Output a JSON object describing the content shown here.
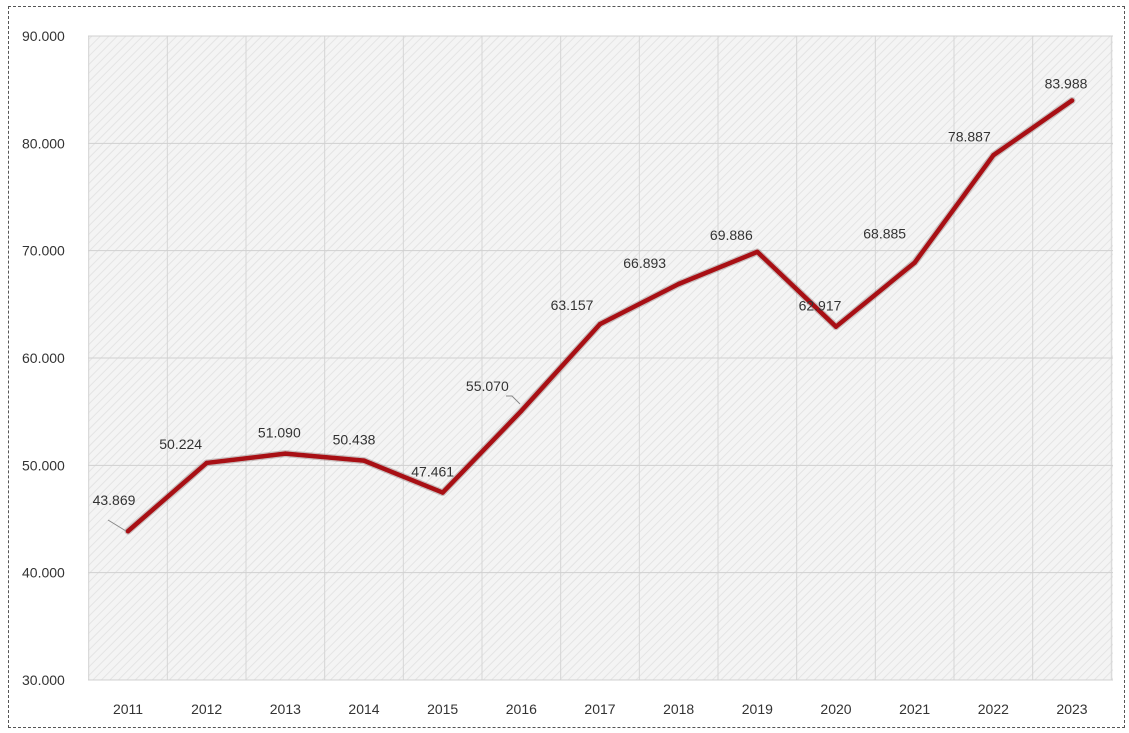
{
  "chart_data": {
    "type": "line",
    "title": "",
    "xlabel": "",
    "ylabel": "",
    "categories": [
      "2011",
      "2012",
      "2013",
      "2014",
      "2015",
      "2016",
      "2017",
      "2018",
      "2019",
      "2020",
      "2021",
      "2022",
      "2023"
    ],
    "series": [
      {
        "values": [
          43869,
          50224,
          51090,
          50438,
          47461,
          55070,
          63157,
          66893,
          69886,
          62917,
          68885,
          78887,
          83988
        ],
        "color": "#a80f14"
      }
    ],
    "data_labels": [
      "43.869",
      "50.224",
      "51.090",
      "50.438",
      "47.461",
      "55.070",
      "63.157",
      "66.893",
      "69.886",
      "62.917",
      "68.885",
      "78.887",
      "83.988"
    ],
    "y_ticks": [
      30000,
      40000,
      50000,
      60000,
      70000,
      80000,
      90000
    ],
    "y_tick_labels": [
      "30.000",
      "40.000",
      "50.000",
      "60.000",
      "70.000",
      "80.000",
      "90.000"
    ],
    "ylim": [
      30000,
      90000
    ],
    "grid": true,
    "background_pattern": "diagonal-hatch",
    "legend": "none"
  }
}
